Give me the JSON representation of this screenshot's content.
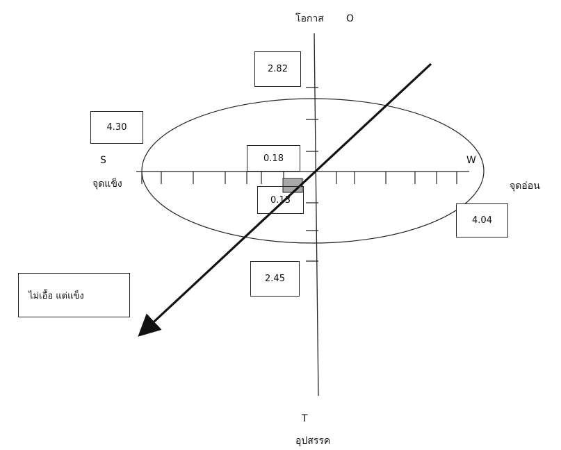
{
  "axes": {
    "top_label_th": "โอกาส",
    "top_label_en": "O",
    "bottom_label_en": "T",
    "bottom_label_th": "อุปสรรค",
    "left_label_en": "S",
    "left_label_th": "จุดแข็ง",
    "right_label_en": "W",
    "right_label_th": "จุดอ่อน"
  },
  "scores": {
    "opportunity": "2.82",
    "threat": "2.45",
    "strength": "4.30",
    "weakness": "4.04",
    "inner_top": "0.18",
    "inner_bottom": "0.13"
  },
  "strategy_label": "ไม่เอื้อ แต่แข็ง"
}
